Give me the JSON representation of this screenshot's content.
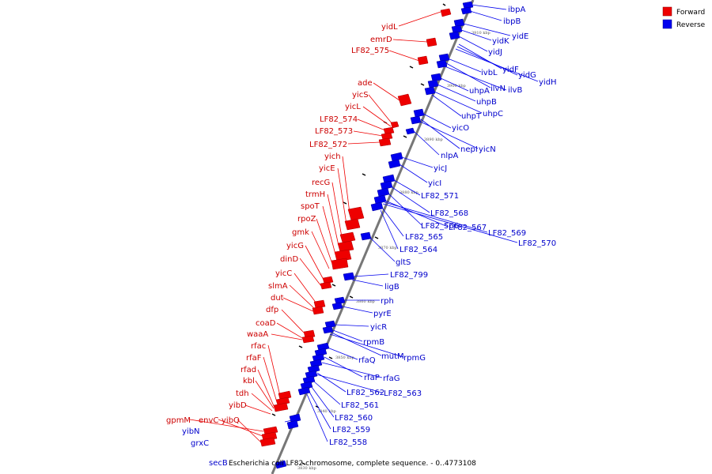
{
  "caption": "Escherichia coli LF82 chromosome, complete sequence. - 0..4773108",
  "legend": [
    {
      "label": "Forward",
      "color": "#ee0000"
    },
    {
      "label": "Reverse",
      "color": "#0000ee"
    }
  ],
  "ticks": [
    "3910 kbp",
    "3900 kbp",
    "3890 kbp",
    "3880 kbp",
    "3870 kbp",
    "3860 kbp",
    "3850 kbp",
    "3840 kbp",
    "3830 kbp"
  ],
  "forward_genes": [
    "yidL",
    "emrD",
    "LF82_575",
    "ade",
    "yicS",
    "yicL",
    "LF82_574",
    "LF82_573",
    "LF82_572",
    "yich",
    "yicE",
    "recG",
    "trmH",
    "spoT",
    "rpoZ",
    "gmk",
    "yicG",
    "dinD",
    "yicC",
    "slmA",
    "dut",
    "dfp",
    "coaD",
    "waaA",
    "rfac",
    "rfaF",
    "rfad",
    "kbl",
    "tdh",
    "yibD",
    "gpmM",
    "envC",
    "yibQ",
    "yibN",
    "grxC",
    "secB"
  ],
  "reverse_genes": [
    "ibpA",
    "ibpB",
    "yidE",
    "yidK",
    "yidJ",
    "yidF",
    "yidG",
    "yidH",
    "ivbL",
    "ilvN",
    "ilvB",
    "uhpA",
    "uhpB",
    "uhpC",
    "uhpT",
    "yicO",
    "nepI",
    "yicN",
    "nlpA",
    "yicJ",
    "yicI",
    "LF82_571",
    "LF82_568",
    "LF82_566",
    "LF82_567",
    "LF82_569",
    "LF82_570",
    "LF82_565",
    "LF82_564",
    "gltS",
    "LF82_799",
    "ligB",
    "rph",
    "pyrE",
    "yicR",
    "rpmB",
    "mutM",
    "rpmG",
    "rfaQ",
    "rfaP",
    "rfaG",
    "LF82_562",
    "LF82_563",
    "LF82_561",
    "LF82_560",
    "LF82_559",
    "LF82_558"
  ]
}
